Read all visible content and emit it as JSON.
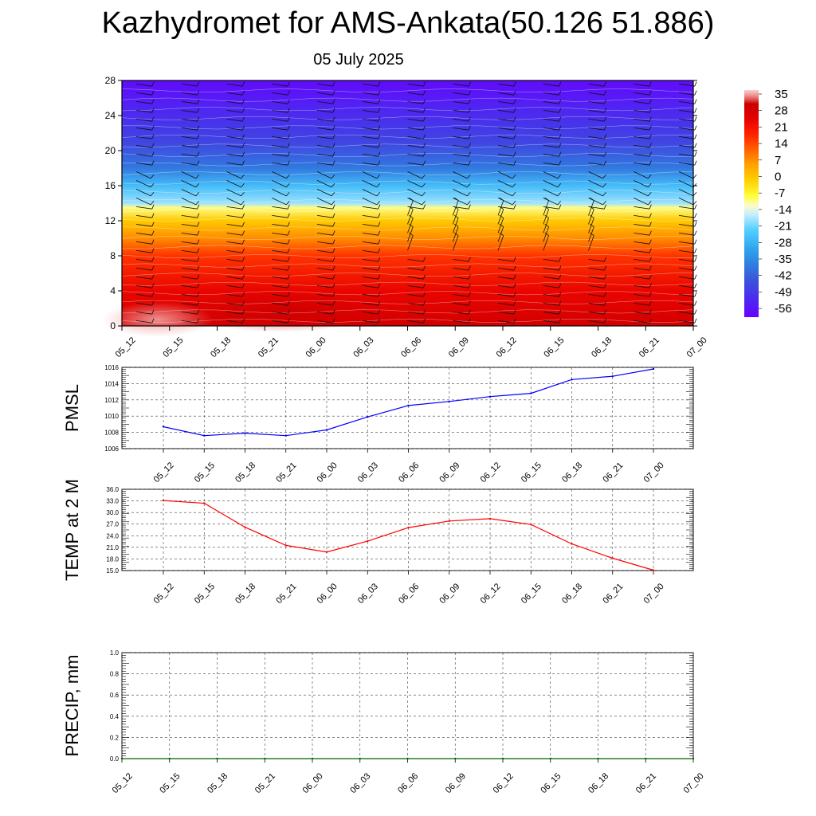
{
  "title": "Kazhydromet for AMS-Ankata(50.126 51.886)",
  "subtitle": "05 July 2025",
  "time_labels": [
    "05_12",
    "05_15",
    "05_18",
    "05_21",
    "06_00",
    "06_03",
    "06_06",
    "06_09",
    "06_12",
    "06_15",
    "06_18",
    "06_21",
    "07_00"
  ],
  "chart_data": [
    {
      "type": "heatmap",
      "ylim": [
        0,
        28
      ],
      "yticks": [
        "0",
        "4",
        "8",
        "12",
        "16",
        "20",
        "24",
        "28"
      ],
      "x": [
        "05_12",
        "05_15",
        "05_18",
        "05_21",
        "06_00",
        "06_03",
        "06_06",
        "06_09",
        "06_12",
        "06_15",
        "06_18",
        "06_21",
        "07_00"
      ],
      "colorbar": {
        "labels": [
          "35",
          "28",
          "21",
          "14",
          "7",
          "0",
          "-7",
          "-14",
          "-21",
          "-28",
          "-35",
          "-42",
          "-49",
          "-56"
        ],
        "range": [
          -60,
          38
        ]
      },
      "temperature_profile": [
        {
          "y": 0,
          "value": 30
        },
        {
          "y": 4,
          "value": 25
        },
        {
          "y": 8,
          "value": 17
        },
        {
          "y": 10,
          "value": 8
        },
        {
          "y": 12,
          "value": 0
        },
        {
          "y": 13.5,
          "value": -10
        },
        {
          "y": 14,
          "value": -18
        },
        {
          "y": 16,
          "value": -26
        },
        {
          "y": 18,
          "value": -38
        },
        {
          "y": 21,
          "value": -47
        },
        {
          "y": 23,
          "value": -50
        },
        {
          "y": 26,
          "value": -55
        },
        {
          "y": 28,
          "value": -58
        }
      ]
    },
    {
      "type": "line",
      "ylabel": "PMSL",
      "ylim": [
        1006,
        1016
      ],
      "yticks": [
        "1006",
        "1008",
        "1010",
        "1012",
        "1014",
        "1016"
      ],
      "x": [
        "05_12",
        "05_15",
        "05_18",
        "05_21",
        "06_00",
        "06_03",
        "06_06",
        "06_09",
        "06_12",
        "06_15",
        "06_18",
        "06_21",
        "07_00"
      ],
      "values": [
        1008.7,
        1007.6,
        1007.9,
        1007.6,
        1008.3,
        1009.9,
        1011.3,
        1011.8,
        1012.4,
        1012.8,
        1014.5,
        1014.9,
        1015.8
      ],
      "color": "#0000ff"
    },
    {
      "type": "line",
      "ylabel": "TEMP at 2 M",
      "ylim": [
        15,
        36
      ],
      "yticks": [
        "15.0",
        "18.0",
        "21.0",
        "24.0",
        "27.0",
        "30.0",
        "33.0",
        "36.0"
      ],
      "x": [
        "05_12",
        "05_15",
        "05_18",
        "05_21",
        "06_00",
        "06_03",
        "06_06",
        "06_09",
        "06_12",
        "06_15",
        "06_18",
        "06_21",
        "07_00"
      ],
      "values": [
        33.1,
        32.4,
        26.2,
        21.5,
        19.8,
        22.6,
        26.1,
        27.8,
        28.4,
        26.9,
        21.9,
        18.2,
        15.1
      ],
      "color": "#ff0000"
    },
    {
      "type": "line",
      "ylabel": "PRECIP, mm",
      "ylim": [
        0,
        1
      ],
      "yticks": [
        "0.0",
        "0.2",
        "0.4",
        "0.6",
        "0.8",
        "1.0"
      ],
      "x": [
        "05_12",
        "05_15",
        "05_18",
        "05_21",
        "06_00",
        "06_03",
        "06_06",
        "06_09",
        "06_12",
        "06_15",
        "06_18",
        "06_21",
        "07_00"
      ],
      "values": [
        0,
        0,
        0,
        0,
        0,
        0,
        0,
        0,
        0,
        0,
        0,
        0,
        0
      ],
      "color": "#006400"
    }
  ]
}
